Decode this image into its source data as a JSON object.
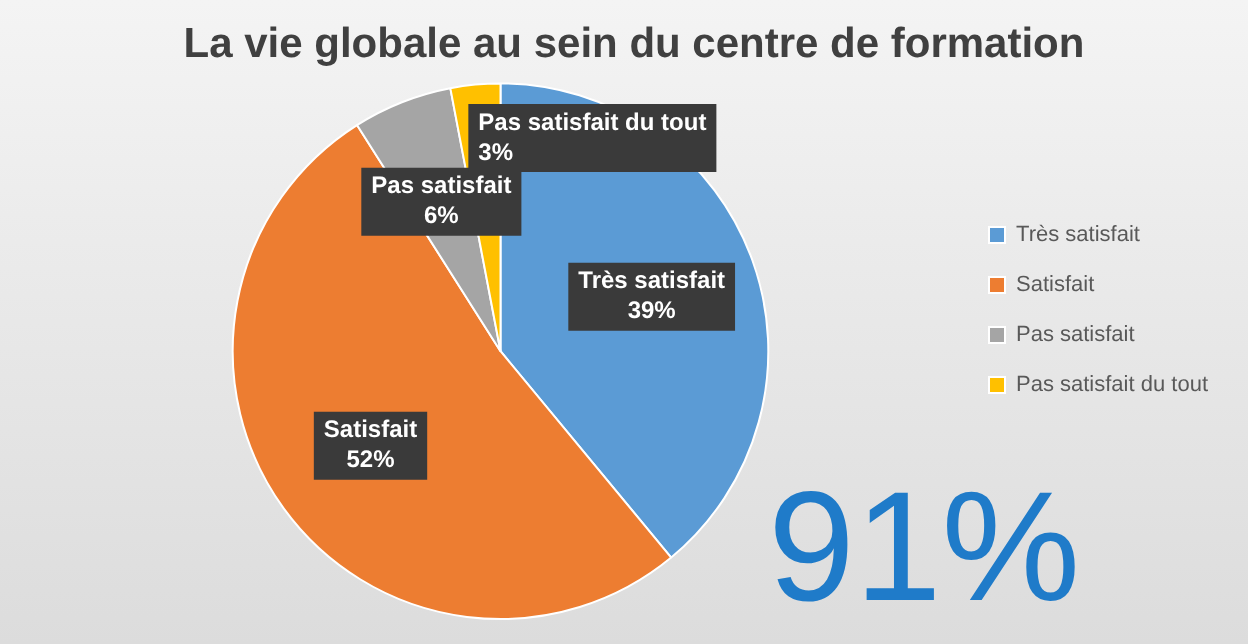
{
  "chart_data": {
    "type": "pie",
    "title": "La vie globale au sein du centre de formation",
    "categories": [
      "Très satisfait",
      "Satisfait",
      "Pas satisfait",
      "Pas satisfait du tout"
    ],
    "values": [
      39,
      52,
      6,
      3
    ],
    "colors": [
      "#5b9bd5",
      "#ed7d31",
      "#a5a5a5",
      "#ffc000"
    ],
    "value_labels": [
      "39%",
      "52%",
      "6%",
      "3%"
    ],
    "legend": "right",
    "annotations": [
      "91%"
    ]
  }
}
